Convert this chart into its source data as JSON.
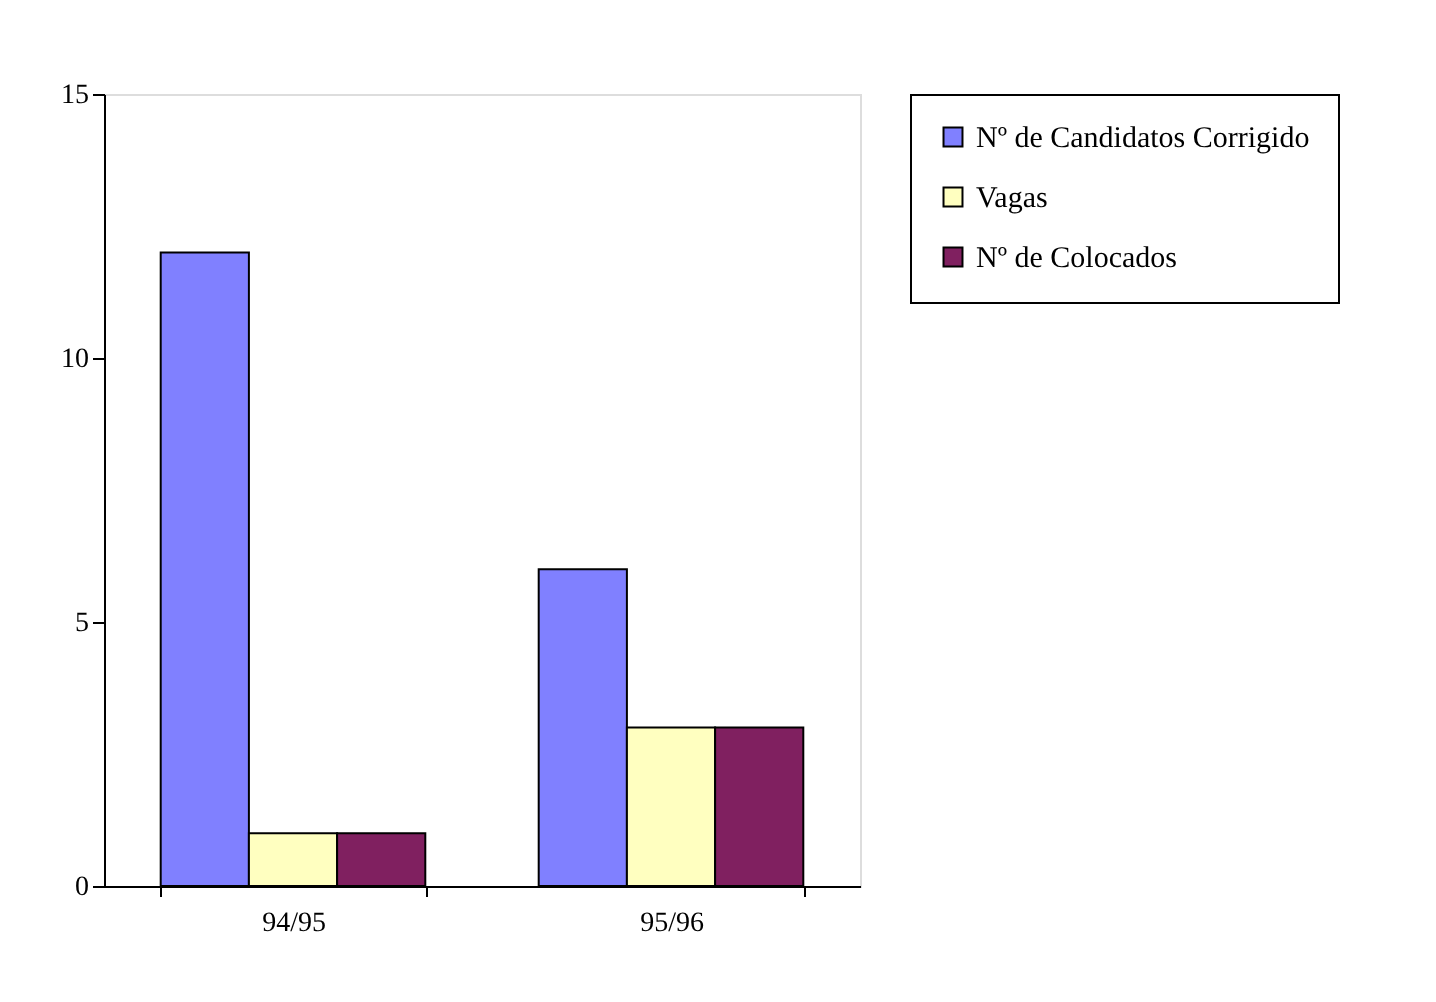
{
  "chart_data": {
    "type": "bar",
    "categories": [
      "94/95",
      "95/96"
    ],
    "series": [
      {
        "name": "Nº de Candidatos Corrigido",
        "color": "#8080ff",
        "values": [
          12,
          6
        ]
      },
      {
        "name": "Vagas",
        "color": "#ffffc0",
        "values": [
          1,
          3
        ]
      },
      {
        "name": "Nº de Colocados",
        "color": "#802060",
        "values": [
          1,
          3
        ]
      }
    ],
    "ylim": [
      0,
      15
    ],
    "yticks": [
      0,
      5,
      10,
      15
    ],
    "grid": false,
    "legend": "right"
  }
}
